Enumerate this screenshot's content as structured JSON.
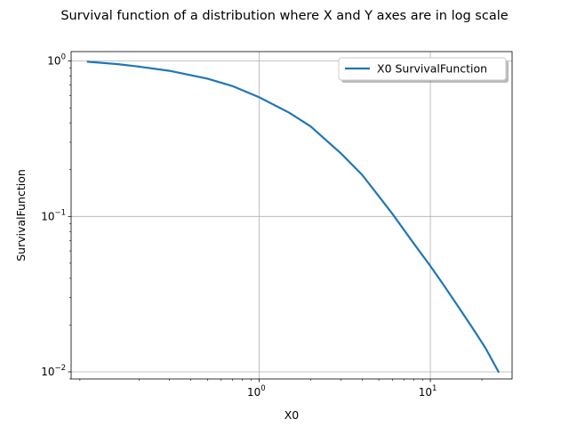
{
  "chart_data": {
    "type": "line",
    "title": "Survival function of a distribution where X and Y axes are in log scale",
    "xlabel": "X0",
    "ylabel": "SurvivalFunction",
    "xscale": "log",
    "yscale": "log",
    "xlim": [
      0.08,
      30
    ],
    "ylim": [
      0.009,
      1.15
    ],
    "x_ticks": [
      {
        "value": 1,
        "base": "10",
        "exp": "0"
      },
      {
        "value": 10,
        "base": "10",
        "exp": "1"
      }
    ],
    "y_ticks": [
      {
        "value": 1,
        "base": "10",
        "exp": "0"
      },
      {
        "value": 0.1,
        "base": "10",
        "exp": "−1"
      },
      {
        "value": 0.01,
        "base": "10",
        "exp": "−2"
      }
    ],
    "grid": true,
    "legend_position": "top-right",
    "colors": {
      "series": "#1f77b4",
      "grid": "#b0b0b0"
    },
    "series": [
      {
        "name": "X0 SurvivalFunction",
        "x": [
          0.1,
          0.15,
          0.2,
          0.3,
          0.5,
          0.7,
          1.0,
          1.5,
          2.0,
          3.0,
          4.0,
          5.0,
          6.0,
          8.0,
          10.0,
          12.0,
          15.0,
          18.0,
          21.0,
          25.0
        ],
        "y": [
          0.99,
          0.955,
          0.92,
          0.865,
          0.77,
          0.69,
          0.585,
          0.465,
          0.38,
          0.255,
          0.185,
          0.135,
          0.104,
          0.067,
          0.048,
          0.036,
          0.025,
          0.0185,
          0.0142,
          0.01
        ]
      }
    ]
  }
}
